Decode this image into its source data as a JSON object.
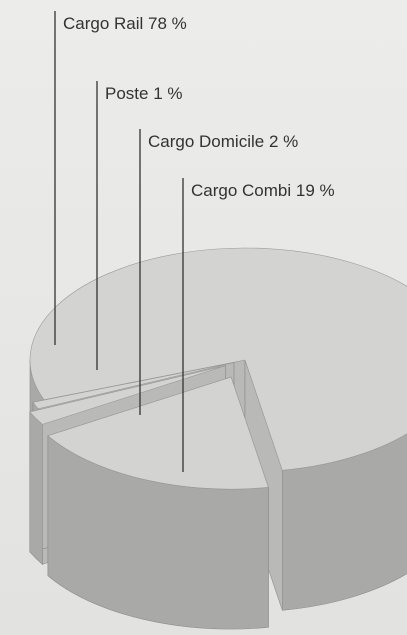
{
  "chart_data": {
    "type": "pie3d",
    "categories": [
      "Cargo Rail",
      "Poste",
      "Cargo Domicile",
      "Cargo Combi"
    ],
    "values": [
      78,
      1,
      2,
      19
    ],
    "value_labels": [
      "78 %",
      "1 %",
      "2 %",
      "19 %"
    ],
    "color": "#d3d3d1"
  }
}
